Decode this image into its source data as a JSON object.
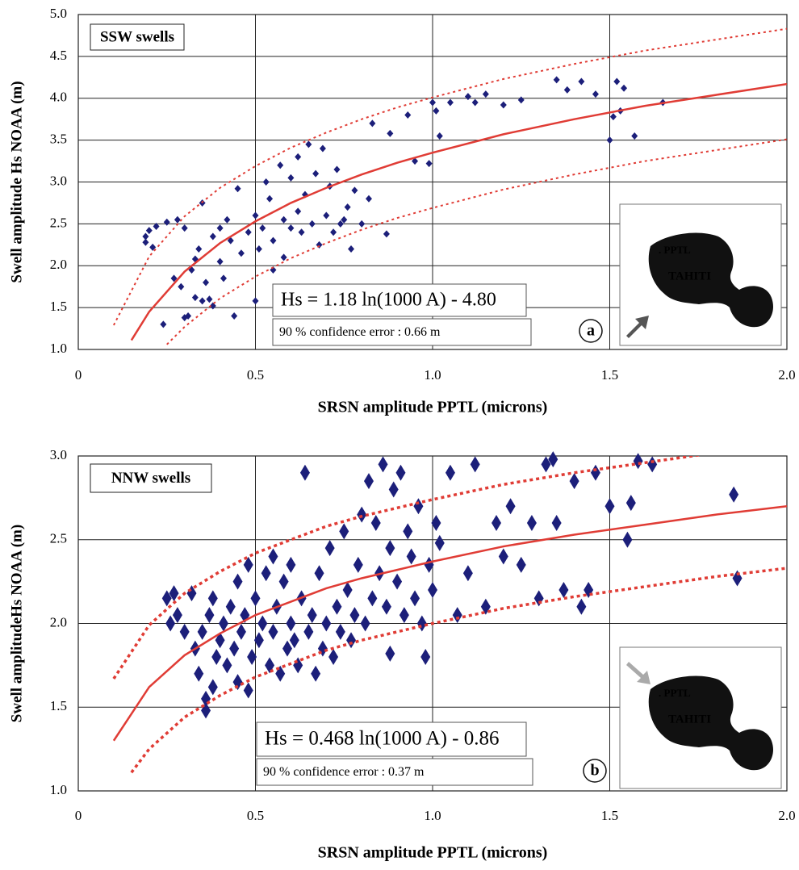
{
  "chart_data": [
    {
      "type": "scatter",
      "label": "SSW swells",
      "equation": "Hs = 1.18  ln(1000 A) - 4.80",
      "error_text": "90 % confidence error : 0.66 m",
      "panel": "a",
      "inset_labels": [
        ". PPTL",
        "TAHITI"
      ],
      "xlabel": "SRSN amplitude PPTL (microns)",
      "ylabel": "Swell amplitude Hs  NOAA (m)",
      "xlim": [
        0,
        2.0
      ],
      "ylim": [
        1.0,
        5.0
      ],
      "xticks": [
        0,
        0.5,
        {
          "value": 1.0,
          "label": "1.0"
        },
        1.5,
        {
          "value": 2.0,
          "label": "2.0"
        }
      ],
      "yticks": [
        {
          "value": 1.0,
          "label": "1.0"
        },
        1.5,
        {
          "value": 2.0,
          "label": "2.0"
        },
        2.5,
        {
          "value": 3.0,
          "label": "3.0"
        },
        3.5,
        {
          "value": 4.0,
          "label": "4.0"
        },
        4.5,
        {
          "value": 5.0,
          "label": "5.0"
        }
      ],
      "grid": true,
      "series": [
        {
          "type": "scatter",
          "color": "#1c1f7a",
          "x": [
            0.19,
            0.19,
            0.2,
            0.21,
            0.22,
            0.24,
            0.25,
            0.27,
            0.28,
            0.29,
            0.3,
            0.3,
            0.31,
            0.32,
            0.33,
            0.33,
            0.34,
            0.35,
            0.35,
            0.36,
            0.37,
            0.38,
            0.38,
            0.4,
            0.4,
            0.41,
            0.42,
            0.43,
            0.44,
            0.45,
            0.46,
            0.48,
            0.5,
            0.5,
            0.51,
            0.52,
            0.53,
            0.54,
            0.55,
            0.55,
            0.57,
            0.58,
            0.58,
            0.6,
            0.6,
            0.62,
            0.62,
            0.63,
            0.64,
            0.65,
            0.66,
            0.67,
            0.68,
            0.69,
            0.7,
            0.71,
            0.72,
            0.73,
            0.74,
            0.75,
            0.76,
            0.77,
            0.78,
            0.8,
            0.82,
            0.83,
            0.87,
            0.88,
            0.93,
            0.95,
            0.99,
            1.0,
            1.01,
            1.02,
            1.05,
            1.1,
            1.12,
            1.15,
            1.2,
            1.25,
            1.35,
            1.38,
            1.42,
            1.46,
            1.5,
            1.51,
            1.52,
            1.53,
            1.54,
            1.57,
            1.65
          ],
          "values": [
            2.35,
            2.28,
            2.42,
            2.22,
            2.47,
            1.3,
            2.52,
            1.85,
            2.55,
            1.75,
            1.38,
            2.45,
            1.4,
            1.95,
            2.08,
            1.62,
            2.2,
            1.58,
            2.75,
            1.8,
            1.6,
            2.35,
            1.52,
            2.45,
            2.05,
            1.85,
            2.55,
            2.3,
            1.4,
            2.92,
            2.15,
            2.4,
            2.6,
            1.58,
            2.2,
            2.45,
            3.0,
            2.8,
            2.3,
            1.95,
            3.2,
            2.55,
            2.1,
            2.45,
            3.05,
            3.3,
            2.65,
            2.4,
            2.85,
            3.45,
            2.5,
            3.1,
            2.25,
            3.4,
            2.6,
            2.95,
            2.4,
            3.15,
            2.5,
            2.55,
            2.7,
            2.2,
            2.9,
            2.5,
            2.8,
            3.7,
            2.38,
            3.58,
            3.8,
            3.25,
            3.22,
            3.95,
            3.85,
            3.55,
            3.95,
            4.02,
            3.95,
            4.05,
            3.92,
            3.98,
            4.22,
            4.1,
            4.2,
            4.05,
            3.5,
            3.78,
            4.2,
            3.85,
            4.12,
            3.55,
            3.95
          ]
        },
        {
          "type": "line",
          "style": "solid",
          "color": "#e03c35",
          "x": [
            0.15,
            0.2,
            0.3,
            0.4,
            0.5,
            0.6,
            0.7,
            0.8,
            0.9,
            1.0,
            1.2,
            1.4,
            1.6,
            1.8,
            2.0
          ],
          "values": [
            1.11,
            1.45,
            1.93,
            2.27,
            2.53,
            2.75,
            2.93,
            3.09,
            3.23,
            3.35,
            3.57,
            3.75,
            3.91,
            4.04,
            4.17
          ]
        },
        {
          "type": "line",
          "style": "dotted",
          "color": "#e03c35",
          "x": [
            0.1,
            0.2,
            0.3,
            0.4,
            0.5,
            0.6,
            0.7,
            0.8,
            0.9,
            1.0,
            1.2,
            1.4,
            1.6,
            1.8,
            2.0
          ],
          "values": [
            1.29,
            2.11,
            2.59,
            2.93,
            3.19,
            3.41,
            3.59,
            3.75,
            3.89,
            4.01,
            4.23,
            4.41,
            4.57,
            4.7,
            4.83
          ]
        },
        {
          "type": "line",
          "style": "dotted",
          "color": "#e03c35",
          "x": [
            0.25,
            0.3,
            0.4,
            0.5,
            0.6,
            0.7,
            0.8,
            0.9,
            1.0,
            1.2,
            1.4,
            1.6,
            1.8,
            2.0
          ],
          "values": [
            1.06,
            1.27,
            1.61,
            1.87,
            2.09,
            2.27,
            2.43,
            2.57,
            2.69,
            2.91,
            3.09,
            3.25,
            3.38,
            3.51
          ]
        }
      ]
    },
    {
      "type": "scatter",
      "label": "NNW swells",
      "equation": "Hs = 0.468 ln(1000 A) - 0.86",
      "error_text": "90 % confidence error : 0.37 m",
      "panel": "b",
      "inset_labels": [
        ". PPTL",
        "TAHITI"
      ],
      "xlabel": "SRSN amplitude PPTL (microns)",
      "ylabel": "Swell amplitudeHs  NOAA (m)",
      "xlim": [
        0,
        2.0
      ],
      "ylim": [
        1.0,
        3.0
      ],
      "xticks": [
        0,
        0.5,
        {
          "value": 1.0,
          "label": "1.0"
        },
        1.5,
        {
          "value": 2.0,
          "label": "2.0"
        }
      ],
      "yticks": [
        {
          "value": 1.0,
          "label": "1.0"
        },
        1.5,
        {
          "value": 2.0,
          "label": "2.0"
        },
        2.5,
        {
          "value": 3.0,
          "label": "3.0"
        }
      ],
      "grid": true,
      "series": [
        {
          "type": "scatter",
          "color": "#1c1f7a",
          "x": [
            0.25,
            0.26,
            0.27,
            0.28,
            0.3,
            0.32,
            0.33,
            0.34,
            0.35,
            0.36,
            0.36,
            0.37,
            0.38,
            0.38,
            0.39,
            0.4,
            0.41,
            0.42,
            0.43,
            0.44,
            0.45,
            0.45,
            0.46,
            0.47,
            0.48,
            0.48,
            0.49,
            0.5,
            0.51,
            0.52,
            0.53,
            0.54,
            0.55,
            0.55,
            0.56,
            0.57,
            0.58,
            0.59,
            0.6,
            0.6,
            0.61,
            0.62,
            0.63,
            0.64,
            0.65,
            0.66,
            0.67,
            0.68,
            0.69,
            0.7,
            0.71,
            0.72,
            0.73,
            0.74,
            0.75,
            0.76,
            0.77,
            0.78,
            0.79,
            0.8,
            0.81,
            0.82,
            0.83,
            0.84,
            0.85,
            0.86,
            0.87,
            0.88,
            0.88,
            0.89,
            0.9,
            0.91,
            0.92,
            0.93,
            0.94,
            0.95,
            0.96,
            0.97,
            0.98,
            0.99,
            1.0,
            1.01,
            1.02,
            1.05,
            1.07,
            1.1,
            1.12,
            1.15,
            1.18,
            1.2,
            1.22,
            1.25,
            1.28,
            1.3,
            1.32,
            1.34,
            1.35,
            1.37,
            1.4,
            1.42,
            1.44,
            1.46,
            1.5,
            1.55,
            1.56,
            1.58,
            1.62,
            1.85,
            1.86
          ],
          "values": [
            2.15,
            2.0,
            2.18,
            2.05,
            1.95,
            2.18,
            1.85,
            1.7,
            1.95,
            1.48,
            1.55,
            2.05,
            1.62,
            2.15,
            1.8,
            1.9,
            2.0,
            1.75,
            2.1,
            1.85,
            2.25,
            1.65,
            1.95,
            2.05,
            2.35,
            1.6,
            1.8,
            2.15,
            1.9,
            2.0,
            2.3,
            1.75,
            2.4,
            1.95,
            2.1,
            1.7,
            2.25,
            1.85,
            2.0,
            2.35,
            1.9,
            1.75,
            2.15,
            2.9,
            1.95,
            2.05,
            1.7,
            2.3,
            1.85,
            2.0,
            2.45,
            1.8,
            2.1,
            1.95,
            2.55,
            2.2,
            1.9,
            2.05,
            2.35,
            2.65,
            2.0,
            2.85,
            2.15,
            2.6,
            2.3,
            2.95,
            2.1,
            1.82,
            2.45,
            2.8,
            2.25,
            2.9,
            2.05,
            2.55,
            2.4,
            2.15,
            2.7,
            2.0,
            1.8,
            2.35,
            2.2,
            2.6,
            2.48,
            2.9,
            2.05,
            2.3,
            2.95,
            2.1,
            2.6,
            2.4,
            2.7,
            2.35,
            2.6,
            2.15,
            2.95,
            2.98,
            2.6,
            2.2,
            2.85,
            2.1,
            2.2,
            2.9,
            2.7,
            2.5,
            2.72,
            2.97,
            2.95,
            2.77,
            2.27
          ]
        },
        {
          "type": "line",
          "style": "solid",
          "color": "#e03c35",
          "x": [
            0.1,
            0.2,
            0.3,
            0.4,
            0.5,
            0.6,
            0.7,
            0.8,
            0.9,
            1.0,
            1.2,
            1.4,
            1.6,
            1.8,
            2.0
          ],
          "values": [
            1.3,
            1.62,
            1.81,
            1.94,
            2.05,
            2.13,
            2.21,
            2.27,
            2.32,
            2.37,
            2.46,
            2.53,
            2.59,
            2.65,
            2.7
          ]
        },
        {
          "type": "line",
          "style": "dotted",
          "color": "#e03c35",
          "x": [
            0.1,
            0.2,
            0.3,
            0.4,
            0.5,
            0.6,
            0.7,
            0.8,
            0.9,
            1.0,
            1.2,
            1.4,
            1.6,
            1.8
          ],
          "values": [
            1.67,
            1.99,
            2.18,
            2.31,
            2.42,
            2.5,
            2.58,
            2.64,
            2.69,
            2.74,
            2.83,
            2.9,
            2.96,
            3.02
          ]
        },
        {
          "type": "line",
          "style": "dotted",
          "color": "#e03c35",
          "x": [
            0.15,
            0.2,
            0.3,
            0.4,
            0.5,
            0.6,
            0.7,
            0.8,
            0.9,
            1.0,
            1.2,
            1.4,
            1.6,
            1.8,
            2.0
          ],
          "values": [
            1.11,
            1.25,
            1.44,
            1.57,
            1.68,
            1.76,
            1.84,
            1.9,
            1.95,
            2.0,
            2.09,
            2.16,
            2.22,
            2.28,
            2.33
          ]
        }
      ]
    }
  ]
}
